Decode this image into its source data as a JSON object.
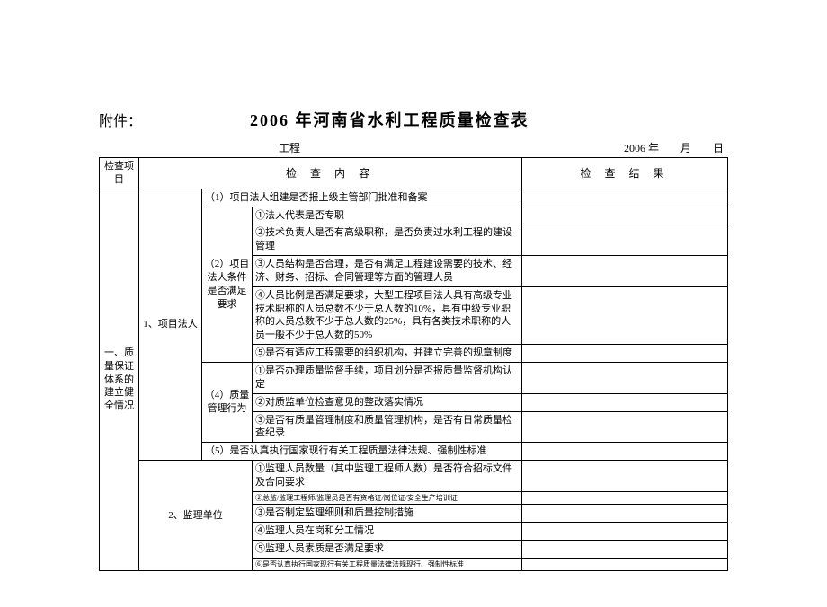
{
  "header": {
    "attachment_label": "附件：",
    "title": "2006 年河南省水利工程质量检查表",
    "project_label": "工程",
    "date_label": "2006 年　　月　　日"
  },
  "columns": {
    "item": "检查项目",
    "content": "检 查 内 容",
    "result": "检 查 结 果"
  },
  "section1": {
    "label": "一、质量保证体系的建立健全情况",
    "g1": {
      "label": "1、项目法人",
      "r1": "（1）项目法人组建是否报上级主管部门批准和备案",
      "g2": {
        "label": "（2）项目法人条件是否满足要求",
        "r1": "①法人代表是否专职",
        "r2": "②技术负责人是否有高级职称，是否负责过水利工程的建设管理",
        "r3": "③人员结构是否合理，是否有满足工程建设需要的技术、经济、财务、招标、合同管理等方面的管理人员",
        "r4": "④人员比例是否满足要求，大型工程项目法人具有高级专业技术职称的人员总数不少于总人数的10%，具有中级专业职称的人员总数不少于总人数的25%，具有各类技术职称的人员一般不少于总人数的50%",
        "r5": "⑤是否有适应工程需要的组织机构，并建立完善的规章制度"
      },
      "g4": {
        "label": "（4）质量管理行为",
        "r1": "①是否办理质量监督手续，项目划分是否报质量监督机构认定",
        "r2": "②对质监单位检查意见的整改落实情况",
        "r3": "③是否有质量管理制度和质量管理机构，是否有日常质量检查纪录"
      },
      "r5": "（5）是否认真执行国家现行有关工程质量法律法规、强制性标准"
    },
    "g2": {
      "label": "2、监理单位",
      "r1": "①监理人员数量（其中监理工程师人数）是否符合招标文件及合同要求",
      "r2": "②总监/监理工程师/监理员是否有资格证/岗位证/安全生产培训证",
      "r3": "③是否制定监理细则和质量控制措施",
      "r4": "④监理人员在岗和分工情况",
      "r5": "⑤监理人员素质是否满足要求",
      "r6": "⑥是否认真执行国家现行有关工程质量法律法规现行、强制性标准"
    }
  },
  "style": {
    "border_color": "#000000",
    "background": "#ffffff",
    "body_fontsize": 11,
    "tiny_fontsize": 8,
    "title_fontsize": 18
  }
}
